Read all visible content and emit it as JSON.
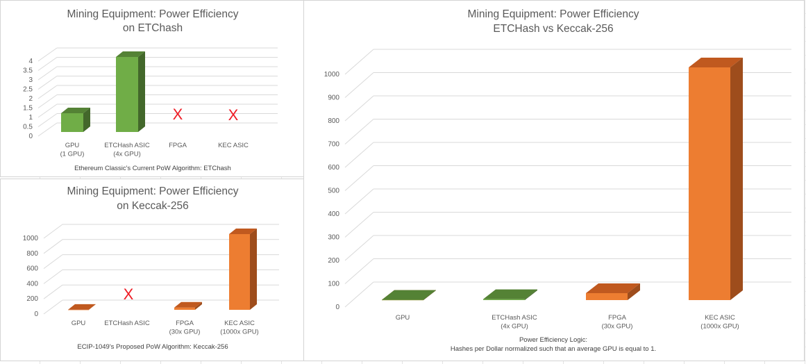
{
  "colors": {
    "green_front": "#70ad47",
    "green_top": "#548235",
    "green_side": "#43682b",
    "orange_front": "#ed7d31",
    "orange_top": "#c0591f",
    "orange_side": "#9e4d1c",
    "grid": "#d9d9d9",
    "na_marker": "#ee1c25"
  },
  "chart_data": [
    {
      "type": "bar",
      "title": [
        "Mining Equipment: Power Efficiency",
        "on ETChash"
      ],
      "xlabel": "Ethereum Classic's Current PoW Algorithm: ETChash",
      "ylabel": "",
      "categories": [
        [
          "GPU",
          "(1 GPU)"
        ],
        [
          "ETCHash ASIC",
          "(4x GPU)"
        ],
        [
          "FPGA"
        ],
        [
          "KEC ASIC"
        ]
      ],
      "series": [
        {
          "name": "ETChash",
          "color": "green",
          "values": [
            1,
            4,
            null,
            null
          ]
        }
      ],
      "na_marker": "X",
      "na_categories": [
        2,
        3
      ],
      "yticks": [
        "0",
        "0.5",
        "1",
        "1.5",
        "2",
        "2.5",
        "3",
        "3.5",
        "4"
      ],
      "ylim": [
        0,
        4
      ],
      "grid": true
    },
    {
      "type": "bar",
      "title": [
        "Mining Equipment: Power Efficiency",
        "on Keccak-256"
      ],
      "xlabel": "ECIP-1049's Proposed PoW Algorithm: Keccak-256",
      "ylabel": "",
      "categories": [
        [
          "GPU"
        ],
        [
          "ETCHash ASIC"
        ],
        [
          "FPGA",
          "(30x GPU)"
        ],
        [
          "KEC ASIC",
          "(1000x GPU)"
        ]
      ],
      "series": [
        {
          "name": "Keccak-256",
          "color": "orange",
          "values": [
            1,
            null,
            30,
            1000
          ]
        }
      ],
      "na_marker": "X",
      "na_categories": [
        1
      ],
      "yticks": [
        "0",
        "200",
        "400",
        "600",
        "800",
        "1000"
      ],
      "ylim": [
        0,
        1000
      ],
      "grid": true
    },
    {
      "type": "bar",
      "title": [
        "Mining Equipment: Power Efficiency",
        "ETCHash vs Keccak-256"
      ],
      "xlabel": [
        "Power Efficiency Logic:",
        "Hashes per Dollar normalized such that an average GPU is equal to 1."
      ],
      "ylabel": "",
      "categories": [
        [
          "GPU"
        ],
        [
          "ETCHash ASIC",
          "(4x GPU)"
        ],
        [
          "FPGA",
          "(30x GPU)"
        ],
        [
          "KEC ASIC",
          "(1000x GPU)"
        ]
      ],
      "series": [
        {
          "name": "Keccak-256",
          "color": "orange",
          "values": [
            1,
            null,
            30,
            1000
          ]
        },
        {
          "name": "ETChash",
          "color": "green",
          "values": [
            1,
            4,
            null,
            null
          ]
        }
      ],
      "na_categories": [],
      "yticks": [
        "0",
        "100",
        "200",
        "300",
        "400",
        "500",
        "600",
        "700",
        "800",
        "900",
        "1000"
      ],
      "ylim": [
        0,
        1000
      ],
      "grid": true
    }
  ]
}
